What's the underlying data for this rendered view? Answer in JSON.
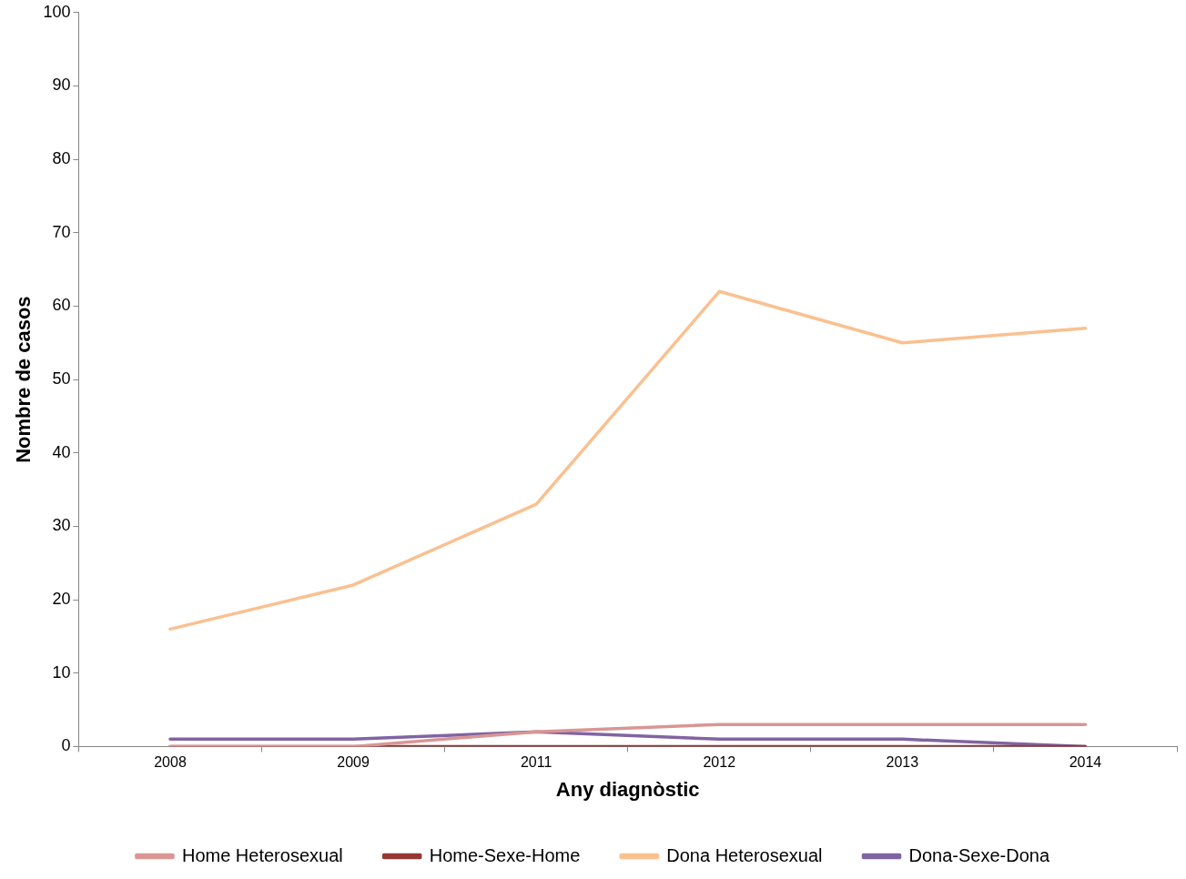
{
  "chart_data": {
    "type": "line",
    "xlabel": "Any diagnòstic",
    "ylabel": "Nombre de casos",
    "categories": [
      "2008",
      "2009",
      "2011",
      "2012",
      "2013",
      "2014"
    ],
    "series": [
      {
        "name": "Home Heterosexual",
        "color": "#d99694",
        "values": [
          0,
          0,
          2,
          3,
          3,
          3
        ]
      },
      {
        "name": "Home-Sexe-Home",
        "color": "#953735",
        "values": [
          0,
          0,
          0,
          0,
          0,
          0
        ]
      },
      {
        "name": "Dona Heterosexual",
        "color": "#fac090",
        "values": [
          16,
          22,
          33,
          62,
          55,
          57
        ]
      },
      {
        "name": "Dona-Sexe-Dona",
        "color": "#8064a2",
        "values": [
          1,
          1,
          2,
          1,
          1,
          0
        ]
      }
    ],
    "ylim": [
      0,
      100
    ],
    "yticks": [
      0,
      10,
      20,
      30,
      40,
      50,
      60,
      70,
      80,
      90,
      100
    ],
    "grid": false,
    "legend": "bottom",
    "marker": "none",
    "line_style": "solid"
  }
}
